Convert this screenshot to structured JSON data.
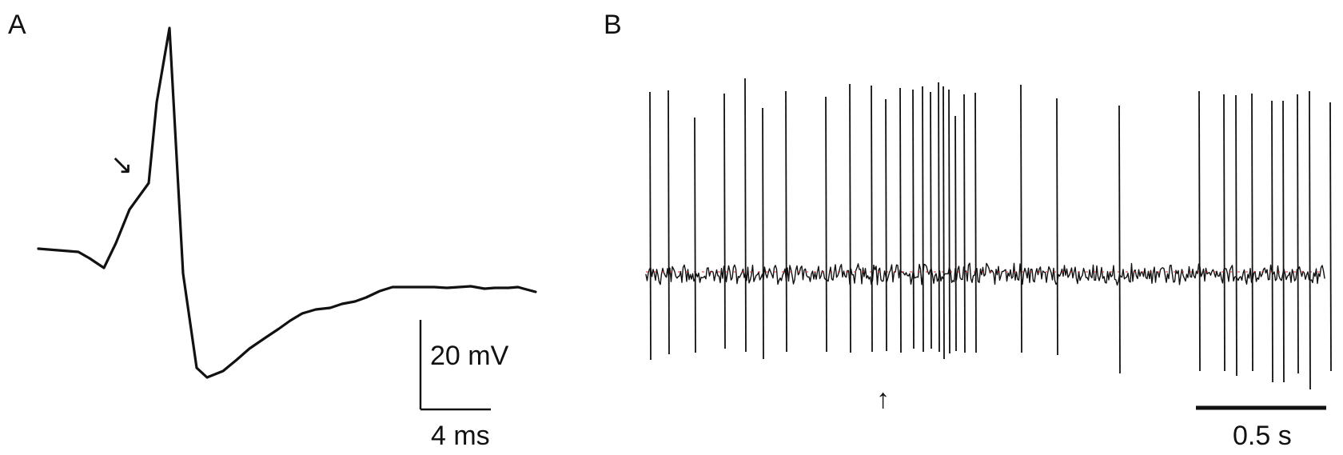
{
  "figure": {
    "panel_a_label": "A",
    "panel_b_label": "B"
  },
  "panel_a": {
    "voltage_scale_label": "20 mV",
    "time_scale_label": "4 ms",
    "arrow_glyph": "↘"
  },
  "panel_b": {
    "time_scale_label": "0.5 s",
    "arrow_glyph": "↑"
  },
  "colors": {
    "trace": "#111111",
    "baseline_accent": "#d22b2b"
  }
}
